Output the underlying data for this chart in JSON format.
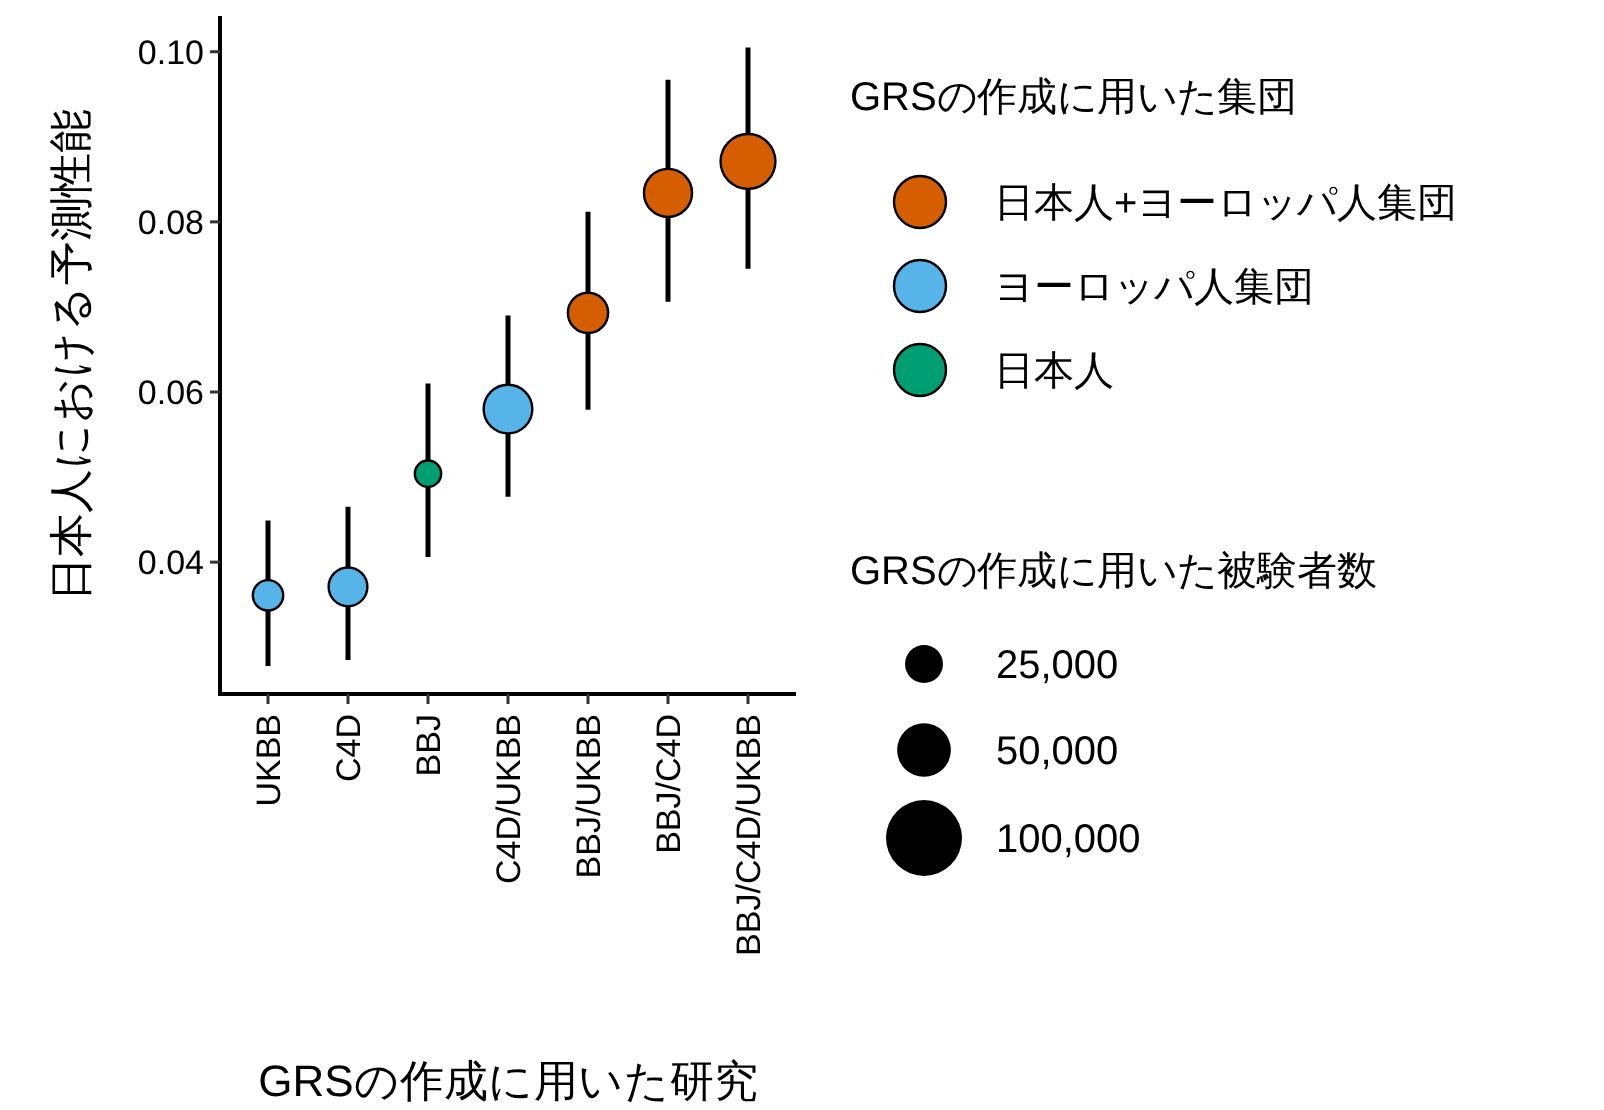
{
  "chart_data": {
    "type": "bubble",
    "categories": [
      "UKBB",
      "C4D",
      "BBJ",
      "C4D/UKBB",
      "BBJ/UKBB",
      "BBJ/C4D",
      "BBJ/C4D/UKBB"
    ],
    "series": [
      {
        "name": "日本人+ヨーロッパ人集団",
        "color": "#d55e00",
        "values": [
          null,
          null,
          null,
          null,
          0.0693,
          0.0834,
          0.0871
        ],
        "sizes": [
          null,
          null,
          null,
          null,
          28000,
          40000,
          52000
        ],
        "errors": [
          null,
          null,
          null,
          null,
          [
            0.0579,
            0.0812
          ],
          [
            0.0706,
            0.0967
          ],
          [
            0.0745,
            0.1005
          ]
        ]
      },
      {
        "name": "ヨーロッパ人集団",
        "color": "#56b4e9",
        "values": [
          0.0361,
          0.0371,
          null,
          0.058,
          null,
          null,
          null
        ],
        "sizes": [
          16000,
          26000,
          null,
          41000,
          null,
          null,
          null
        ],
        "errors": [
          [
            0.0278,
            0.0449
          ],
          [
            0.0285,
            0.0465
          ],
          null,
          [
            0.0477,
            0.069
          ],
          null,
          null,
          null
        ]
      },
      {
        "name": "日本人",
        "color": "#009e73",
        "values": [
          null,
          null,
          0.0504,
          null,
          null,
          null,
          null
        ],
        "sizes": [
          null,
          null,
          12000,
          null,
          null,
          null,
          null
        ],
        "errors": [
          null,
          null,
          [
            0.0406,
            0.061
          ],
          null,
          null,
          null,
          null
        ]
      }
    ],
    "xlabel": "GRSの作成に用いた研究",
    "ylabel": "日本人における予測性能",
    "legend_title": "GRSの作成に用いた集団",
    "size_legend": [
      {
        "value": 25000,
        "label": "25,000"
      },
      {
        "value": 50000,
        "label": "50,000"
      },
      {
        "value": 100000,
        "label": "100,000"
      }
    ],
    "annotations": [
      "GRSの作成に用いた被験者数"
    ],
    "ylim": [
      0.0245,
      0.1042
    ],
    "yticks": [
      0.04,
      0.06,
      0.08,
      {
        "value": 0.1,
        "label": "0.10"
      }
    ],
    "legend": "right",
    "grid": false,
    "marker": "circle"
  }
}
